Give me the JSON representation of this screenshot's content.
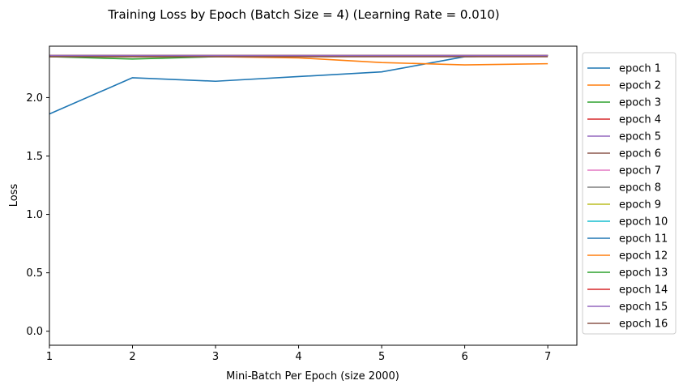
{
  "chart_data": {
    "type": "line",
    "title": "Training Loss by Epoch (Batch Size = 4) (Learning Rate = 0.010)",
    "xlabel": "Mini-Batch Per Epoch (size 2000)",
    "ylabel": "Loss",
    "xlim": [
      1,
      7.35
    ],
    "ylim": [
      -0.12,
      2.44
    ],
    "x_ticks": [
      1,
      2,
      3,
      4,
      5,
      6,
      7
    ],
    "x_tick_labels": [
      "1",
      "2",
      "3",
      "4",
      "5",
      "6",
      "7"
    ],
    "y_ticks": [
      0.0,
      0.5,
      1.0,
      1.5,
      2.0
    ],
    "y_tick_labels": [
      "0.0",
      "0.5",
      "1.0",
      "1.5",
      "2.0"
    ],
    "grid": false,
    "legend_position": "outside-right",
    "x": [
      1,
      2,
      3,
      4,
      5,
      6,
      7
    ],
    "series": [
      {
        "name": "epoch 1",
        "color": "#1f77b4",
        "values": [
          1.86,
          2.17,
          2.14,
          2.18,
          2.22,
          2.35,
          2.36
        ]
      },
      {
        "name": "epoch 2",
        "color": "#ff7f0e",
        "values": [
          2.35,
          2.35,
          2.35,
          2.34,
          2.3,
          2.28,
          2.29
        ]
      },
      {
        "name": "epoch 3",
        "color": "#2ca02c",
        "values": [
          2.35,
          2.33,
          2.35,
          2.36,
          2.36,
          2.36,
          2.36
        ]
      },
      {
        "name": "epoch 4",
        "color": "#d62728",
        "values": [
          2.36,
          2.36,
          2.36,
          2.36,
          2.36,
          2.36,
          2.36
        ]
      },
      {
        "name": "epoch 5",
        "color": "#9467bd",
        "values": [
          2.36,
          2.36,
          2.36,
          2.36,
          2.36,
          2.36,
          2.36
        ]
      },
      {
        "name": "epoch 6",
        "color": "#8c564b",
        "values": [
          2.36,
          2.36,
          2.36,
          2.36,
          2.36,
          2.36,
          2.36
        ]
      },
      {
        "name": "epoch 7",
        "color": "#e377c2",
        "values": [
          2.36,
          2.36,
          2.36,
          2.36,
          2.36,
          2.36,
          2.36
        ]
      },
      {
        "name": "epoch 8",
        "color": "#7f7f7f",
        "values": [
          2.36,
          2.36,
          2.36,
          2.36,
          2.36,
          2.36,
          2.36
        ]
      },
      {
        "name": "epoch 9",
        "color": "#bcbd22",
        "values": [
          2.36,
          2.36,
          2.36,
          2.36,
          2.36,
          2.36,
          2.36
        ]
      },
      {
        "name": "epoch 10",
        "color": "#17becf",
        "values": [
          2.36,
          2.36,
          2.36,
          2.36,
          2.36,
          2.36,
          2.36
        ]
      },
      {
        "name": "epoch 11",
        "color": "#1f77b4",
        "values": [
          2.36,
          2.36,
          2.36,
          2.36,
          2.36,
          2.36,
          2.36
        ]
      },
      {
        "name": "epoch 12",
        "color": "#ff7f0e",
        "values": [
          2.36,
          2.36,
          2.36,
          2.36,
          2.36,
          2.36,
          2.36
        ]
      },
      {
        "name": "epoch 13",
        "color": "#2ca02c",
        "values": [
          2.36,
          2.36,
          2.36,
          2.36,
          2.36,
          2.36,
          2.36
        ]
      },
      {
        "name": "epoch 14",
        "color": "#d62728",
        "values": [
          2.36,
          2.36,
          2.36,
          2.36,
          2.36,
          2.36,
          2.36
        ]
      },
      {
        "name": "epoch 15",
        "color": "#9467bd",
        "values": [
          2.36,
          2.36,
          2.36,
          2.36,
          2.36,
          2.36,
          2.36
        ]
      },
      {
        "name": "epoch 16",
        "color": "#8c564b",
        "values": [
          2.35,
          2.35,
          2.35,
          2.35,
          2.35,
          2.35,
          2.35
        ]
      }
    ]
  }
}
